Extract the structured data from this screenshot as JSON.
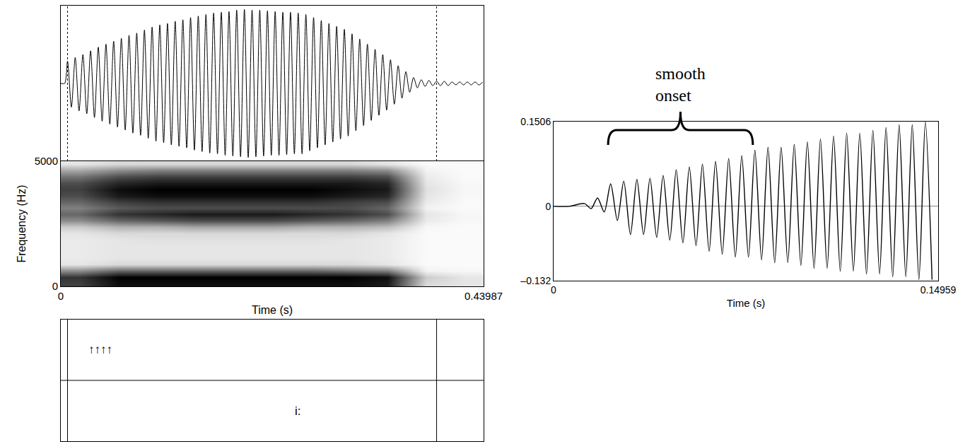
{
  "chart_data": [
    {
      "type": "line",
      "color": "#000000",
      "tick_labels": false,
      "xlim": [
        0,
        0.43987
      ],
      "ylim": [
        -1.05,
        1.05
      ],
      "x": [
        0,
        0.004,
        0.007,
        0.011,
        0.015,
        0.019,
        0.023,
        0.027,
        0.031,
        0.035,
        0.039,
        0.043,
        0.047,
        0.051,
        0.055,
        0.059,
        0.063,
        0.067,
        0.071,
        0.075,
        0.079,
        0.083,
        0.087,
        0.091,
        0.095,
        0.099,
        0.103,
        0.107,
        0.111,
        0.115,
        0.119,
        0.123,
        0.127,
        0.131,
        0.135,
        0.139,
        0.143,
        0.147,
        0.151,
        0.155,
        0.159,
        0.163,
        0.167,
        0.171,
        0.175,
        0.179,
        0.183,
        0.187,
        0.191,
        0.195,
        0.199,
        0.203,
        0.207,
        0.211,
        0.215,
        0.219,
        0.223,
        0.227,
        0.231,
        0.235,
        0.239,
        0.243,
        0.247,
        0.251,
        0.255,
        0.259,
        0.263,
        0.267,
        0.271,
        0.275,
        0.279,
        0.283,
        0.287,
        0.291,
        0.295,
        0.299,
        0.303,
        0.307,
        0.311,
        0.315,
        0.319,
        0.323,
        0.327,
        0.331,
        0.335,
        0.339,
        0.343,
        0.347,
        0.351,
        0.355,
        0.359,
        0.363,
        0.367,
        0.371,
        0.375,
        0.379,
        0.383,
        0.387,
        0.391,
        0.395,
        0.399,
        0.403,
        0.407,
        0.411,
        0.415,
        0.419,
        0.423,
        0.427,
        0.431,
        0.435,
        0.439
      ],
      "values": [
        0,
        0,
        0.3,
        -0.32,
        0.35,
        -0.37,
        0.39,
        -0.41,
        0.44,
        -0.46,
        0.49,
        -0.51,
        0.53,
        -0.55,
        0.57,
        -0.59,
        0.61,
        -0.63,
        0.65,
        -0.67,
        0.68,
        -0.7,
        0.72,
        -0.74,
        0.76,
        -0.78,
        0.79,
        -0.8,
        0.81,
        -0.83,
        0.84,
        -0.85,
        0.86,
        -0.87,
        0.89,
        -0.9,
        0.91,
        -0.92,
        0.93,
        -0.94,
        0.95,
        -0.95,
        0.96,
        -0.97,
        0.97,
        -0.98,
        0.99,
        -0.99,
        1.0,
        -1.0,
        0.99,
        -0.99,
        0.99,
        -0.98,
        0.98,
        -0.97,
        0.97,
        -0.97,
        0.96,
        -0.96,
        0.96,
        -0.95,
        0.95,
        -0.95,
        0.93,
        -0.91,
        0.89,
        -0.87,
        0.85,
        -0.83,
        0.81,
        -0.79,
        0.77,
        -0.75,
        0.73,
        -0.71,
        0.67,
        -0.64,
        0.6,
        -0.57,
        0.53,
        -0.5,
        0.46,
        -0.43,
        0.39,
        -0.36,
        0.32,
        -0.28,
        0.24,
        -0.2,
        0.16,
        -0.12,
        0.08,
        -0.06,
        0.05,
        -0.04,
        0.04,
        -0.03,
        0.03,
        -0.03,
        0.03,
        -0.03,
        0.02,
        -0.02,
        0.02,
        -0.02,
        0.02,
        -0.02,
        0.02,
        -0.02,
        0.02
      ]
    },
    {
      "type": "heatmap",
      "color": "#000000",
      "xlabel": "Time (s)",
      "ylabel": "Frequency (Hz)",
      "xlim": [
        0,
        0.43987
      ],
      "ylim": [
        0,
        5000
      ],
      "xticks": [
        0,
        0.43987
      ],
      "yticks": [
        0,
        5000
      ],
      "zlim": [
        0,
        1
      ],
      "x": [
        0.02,
        0.06,
        0.1,
        0.14,
        0.18,
        0.22,
        0.26,
        0.3,
        0.34,
        0.38,
        0.42
      ],
      "y": [
        125,
        375,
        625,
        875,
        1125,
        1375,
        1625,
        1875,
        2125,
        2375,
        2625,
        2875,
        3125,
        3375,
        3625,
        3875,
        4125,
        4375,
        4625,
        4875
      ],
      "cells": [
        [
          0.75,
          0.95,
          0.95,
          0.95,
          0.95,
          0.95,
          0.95,
          0.95,
          0.9,
          0.15,
          0.1
        ],
        [
          0.8,
          1,
          1,
          1,
          1,
          1,
          1,
          1,
          0.95,
          0.2,
          0.1
        ],
        [
          0.45,
          0.6,
          0.6,
          0.6,
          0.6,
          0.6,
          0.6,
          0.55,
          0.5,
          0.05,
          0.03
        ],
        [
          0.1,
          0.15,
          0.15,
          0.15,
          0.15,
          0.15,
          0.15,
          0.15,
          0.1,
          0.02,
          0.02
        ],
        [
          0.08,
          0.1,
          0.1,
          0.1,
          0.1,
          0.1,
          0.1,
          0.1,
          0.08,
          0.02,
          0.02
        ],
        [
          0.08,
          0.1,
          0.1,
          0.1,
          0.1,
          0.1,
          0.1,
          0.1,
          0.08,
          0.02,
          0.02
        ],
        [
          0.08,
          0.1,
          0.1,
          0.1,
          0.1,
          0.1,
          0.1,
          0.1,
          0.08,
          0.02,
          0.02
        ],
        [
          0.08,
          0.1,
          0.12,
          0.12,
          0.12,
          0.12,
          0.12,
          0.1,
          0.08,
          0.02,
          0.02
        ],
        [
          0.1,
          0.15,
          0.15,
          0.15,
          0.15,
          0.15,
          0.15,
          0.15,
          0.1,
          0.02,
          0.02
        ],
        [
          0.2,
          0.3,
          0.3,
          0.35,
          0.35,
          0.35,
          0.3,
          0.3,
          0.25,
          0.03,
          0.02
        ],
        [
          0.45,
          0.6,
          0.65,
          0.7,
          0.7,
          0.7,
          0.65,
          0.6,
          0.5,
          0.08,
          0.03
        ],
        [
          0.6,
          0.8,
          0.85,
          0.9,
          0.9,
          0.9,
          0.85,
          0.8,
          0.7,
          0.1,
          0.03
        ],
        [
          0.5,
          0.65,
          0.7,
          0.7,
          0.7,
          0.7,
          0.7,
          0.7,
          0.6,
          0.05,
          0.02
        ],
        [
          0.6,
          0.75,
          0.8,
          0.8,
          0.8,
          0.8,
          0.8,
          0.75,
          0.7,
          0.08,
          0.02
        ],
        [
          0.7,
          0.9,
          0.95,
          0.95,
          0.95,
          0.95,
          0.95,
          0.9,
          0.85,
          0.1,
          0.03
        ],
        [
          0.75,
          0.95,
          1,
          1,
          1,
          1,
          1,
          0.95,
          0.9,
          0.12,
          0.03
        ],
        [
          0.7,
          0.85,
          0.9,
          0.9,
          0.9,
          0.9,
          0.9,
          0.9,
          0.85,
          0.1,
          0.03
        ],
        [
          0.55,
          0.7,
          0.75,
          0.75,
          0.75,
          0.75,
          0.75,
          0.75,
          0.7,
          0.08,
          0.02
        ],
        [
          0.35,
          0.45,
          0.5,
          0.5,
          0.5,
          0.5,
          0.5,
          0.5,
          0.45,
          0.05,
          0.02
        ],
        [
          0.1,
          0.15,
          0.15,
          0.15,
          0.15,
          0.15,
          0.15,
          0.15,
          0.1,
          0.02,
          0.02
        ]
      ]
    },
    {
      "type": "textgrid",
      "xlim": [
        0,
        0.43987
      ],
      "boundaries": [
        0.007,
        0.391
      ],
      "tiers": [
        {
          "labels": [
            {
              "x": 0.041,
              "text": "↑↑↑↑"
            }
          ]
        },
        {
          "labels": [
            {
              "x": 0.247,
              "text": "i:"
            }
          ]
        }
      ]
    },
    {
      "type": "line",
      "color": "#000000",
      "xlabel": "Time (s)",
      "xlim": [
        0,
        0.14959
      ],
      "ylim": [
        -0.132,
        0.1506
      ],
      "xticks": [
        0,
        0.14959
      ],
      "yticks": [
        {
          "value": -0.132,
          "label": "–0.132"
        },
        0,
        0.1506
      ],
      "annotations": [
        {
          "text": "smooth onset",
          "x_start": 0.0212,
          "x_end": 0.0775
        }
      ],
      "x": [
        0,
        0.006,
        0.012,
        0.0146,
        0.0171,
        0.0197,
        0.0222,
        0.0248,
        0.0273,
        0.0299,
        0.0324,
        0.035,
        0.0375,
        0.0401,
        0.0426,
        0.0452,
        0.0477,
        0.0503,
        0.0528,
        0.0554,
        0.0579,
        0.0605,
        0.063,
        0.0656,
        0.0681,
        0.0707,
        0.0732,
        0.0758,
        0.0783,
        0.0809,
        0.0834,
        0.086,
        0.0885,
        0.0911,
        0.0936,
        0.0962,
        0.0987,
        0.1013,
        0.1038,
        0.1064,
        0.1089,
        0.1115,
        0.114,
        0.1166,
        0.1191,
        0.1217,
        0.1242,
        0.1268,
        0.1293,
        0.1319,
        0.1344,
        0.137,
        0.1395,
        0.1421,
        0.1446,
        0.1472
      ],
      "values": [
        0,
        0,
        0.005,
        -0.004,
        0.015,
        -0.01,
        0.04,
        -0.025,
        0.045,
        -0.05,
        0.048,
        -0.05,
        0.05,
        -0.055,
        0.055,
        -0.06,
        0.065,
        -0.065,
        0.07,
        -0.07,
        0.075,
        -0.08,
        0.08,
        -0.085,
        0.085,
        -0.09,
        0.09,
        -0.09,
        0.1,
        -0.095,
        0.105,
        -0.1,
        0.105,
        -0.1,
        0.11,
        -0.105,
        0.115,
        -0.11,
        0.12,
        -0.11,
        0.125,
        -0.115,
        0.13,
        -0.115,
        0.13,
        -0.12,
        0.135,
        -0.12,
        0.14,
        -0.125,
        0.145,
        -0.125,
        0.145,
        -0.13,
        0.15,
        -0.13
      ]
    }
  ]
}
